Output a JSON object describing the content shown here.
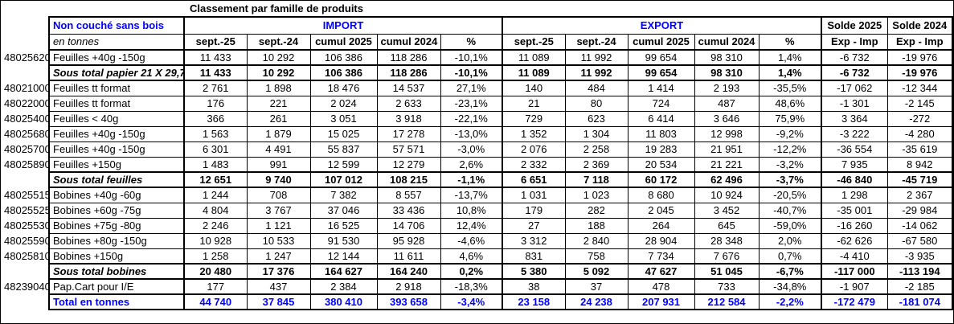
{
  "title": "Classement par famille de produits",
  "colors": {
    "accent_blue": "#0000ff",
    "border": "#000000",
    "text": "#000000",
    "background": "#ffffff"
  },
  "header": {
    "group_left": "Non couché sans bois",
    "unit_label": "en tonnes",
    "import_label": "IMPORT",
    "export_label": "EXPORT",
    "solde_2025": "Solde 2025",
    "solde_2024": "Solde 2024",
    "sub_columns": [
      "sept.-25",
      "sept.-24",
      "cumul 2025",
      "cumul 2024",
      "%"
    ],
    "solde_sub": "Exp - Imp"
  },
  "rows": [
    {
      "code": "48025620",
      "label": "Feuilles +40g -150g",
      "style": "normal",
      "values": [
        "11 433",
        "10 292",
        "106 386",
        "118 286",
        "-10,1%",
        "11 089",
        "11 992",
        "99 654",
        "98 310",
        "1,4%",
        "-6 732",
        "-19 976"
      ]
    },
    {
      "code": "",
      "label": "Sous total papier 21 X 29,7",
      "style": "subtotal",
      "values": [
        "11 433",
        "10 292",
        "106 386",
        "118 286",
        "-10,1%",
        "11 089",
        "11 992",
        "99 654",
        "98 310",
        "1,4%",
        "-6 732",
        "-19 976"
      ]
    },
    {
      "code": "48021000",
      "label": "Feuilles tt format",
      "style": "normal",
      "values": [
        "2 761",
        "1 898",
        "18 476",
        "14 537",
        "27,1%",
        "140",
        "484",
        "1 414",
        "2 193",
        "-35,5%",
        "-17 062",
        "-12 344"
      ]
    },
    {
      "code": "48022000",
      "label": "Feuilles tt format",
      "style": "normal",
      "values": [
        "176",
        "221",
        "2 024",
        "2 633",
        "-23,1%",
        "21",
        "80",
        "724",
        "487",
        "48,6%",
        "-1 301",
        "-2 145"
      ]
    },
    {
      "code": "48025400",
      "label": "Feuilles < 40g",
      "style": "normal",
      "values": [
        "366",
        "261",
        "3 051",
        "3 918",
        "-22,1%",
        "729",
        "623",
        "6 414",
        "3 646",
        "75,9%",
        "3 364",
        "-272"
      ]
    },
    {
      "code": "48025680",
      "label": "Feuilles +40g -150g",
      "style": "normal",
      "values": [
        "1 563",
        "1 879",
        "15 025",
        "17 278",
        "-13,0%",
        "1 352",
        "1 304",
        "11 803",
        "12 998",
        "-9,2%",
        "-3 222",
        "-4 280"
      ]
    },
    {
      "code": "48025700",
      "label": "Feuilles +40g -150g",
      "style": "normal",
      "values": [
        "6 301",
        "4 491",
        "55 837",
        "57 571",
        "-3,0%",
        "2 076",
        "2 258",
        "19 283",
        "21 951",
        "-12,2%",
        "-36 554",
        "-35 619"
      ]
    },
    {
      "code": "48025890",
      "label": "Feuilles +150g",
      "style": "normal",
      "values": [
        "1 483",
        "991",
        "12 599",
        "12 279",
        "2,6%",
        "2 332",
        "2 369",
        "20 534",
        "21 221",
        "-3,2%",
        "7 935",
        "8 942"
      ]
    },
    {
      "code": "",
      "label": "Sous total feuilles",
      "style": "subtotal",
      "values": [
        "12 651",
        "9 740",
        "107 012",
        "108 215",
        "-1,1%",
        "6 651",
        "7 118",
        "60 172",
        "62 496",
        "-3,7%",
        "-46 840",
        "-45 719"
      ]
    },
    {
      "code": "48025515",
      "label": "Bobines +40g -60g",
      "style": "normal",
      "values": [
        "1 244",
        "708",
        "7 382",
        "8 557",
        "-13,7%",
        "1 031",
        "1 023",
        "8 680",
        "10 924",
        "-20,5%",
        "1 298",
        "2 367"
      ]
    },
    {
      "code": "48025525",
      "label": "Bobines +60g -75g",
      "style": "normal",
      "values": [
        "4 804",
        "3 767",
        "37 046",
        "33 436",
        "10,8%",
        "179",
        "282",
        "2 045",
        "3 452",
        "-40,7%",
        "-35 001",
        "-29 984"
      ]
    },
    {
      "code": "48025530",
      "label": "Bobines +75g -80g",
      "style": "normal",
      "values": [
        "2 246",
        "1 121",
        "16 525",
        "14 706",
        "12,4%",
        "27",
        "188",
        "264",
        "645",
        "-59,0%",
        "-16 260",
        "-14 062"
      ]
    },
    {
      "code": "48025590",
      "label": "Bobines +80g -150g",
      "style": "normal",
      "values": [
        "10 928",
        "10 533",
        "91 530",
        "95 928",
        "-4,6%",
        "3 312",
        "2 840",
        "28 904",
        "28 348",
        "2,0%",
        "-62 626",
        "-67 580"
      ]
    },
    {
      "code": "48025810",
      "label": "Bobines +150g",
      "style": "normal",
      "values": [
        "1 258",
        "1 247",
        "12 144",
        "11 611",
        "4,6%",
        "831",
        "758",
        "7 734",
        "7 676",
        "0,7%",
        "-4 410",
        "-3 935"
      ]
    },
    {
      "code": "",
      "label": "Sous total bobines",
      "style": "subtotal",
      "values": [
        "20 480",
        "17 376",
        "164 627",
        "164 240",
        "0,2%",
        "5 380",
        "5 092",
        "47 627",
        "51 045",
        "-6,7%",
        "-117 000",
        "-113 194"
      ]
    },
    {
      "code": "48239040",
      "label": "Pap.Cart pour I/E",
      "style": "normal",
      "values": [
        "177",
        "437",
        "2 384",
        "2 918",
        "-18,3%",
        "38",
        "37",
        "478",
        "733",
        "-34,8%",
        "-1 907",
        "-2 185"
      ]
    },
    {
      "code": "",
      "label": "Total en tonnes",
      "style": "total",
      "values": [
        "44 740",
        "37 845",
        "380 410",
        "393 658",
        "-3,4%",
        "23 158",
        "24 238",
        "207 931",
        "212 584",
        "-2,2%",
        "-172 479",
        "-181 074"
      ]
    }
  ]
}
